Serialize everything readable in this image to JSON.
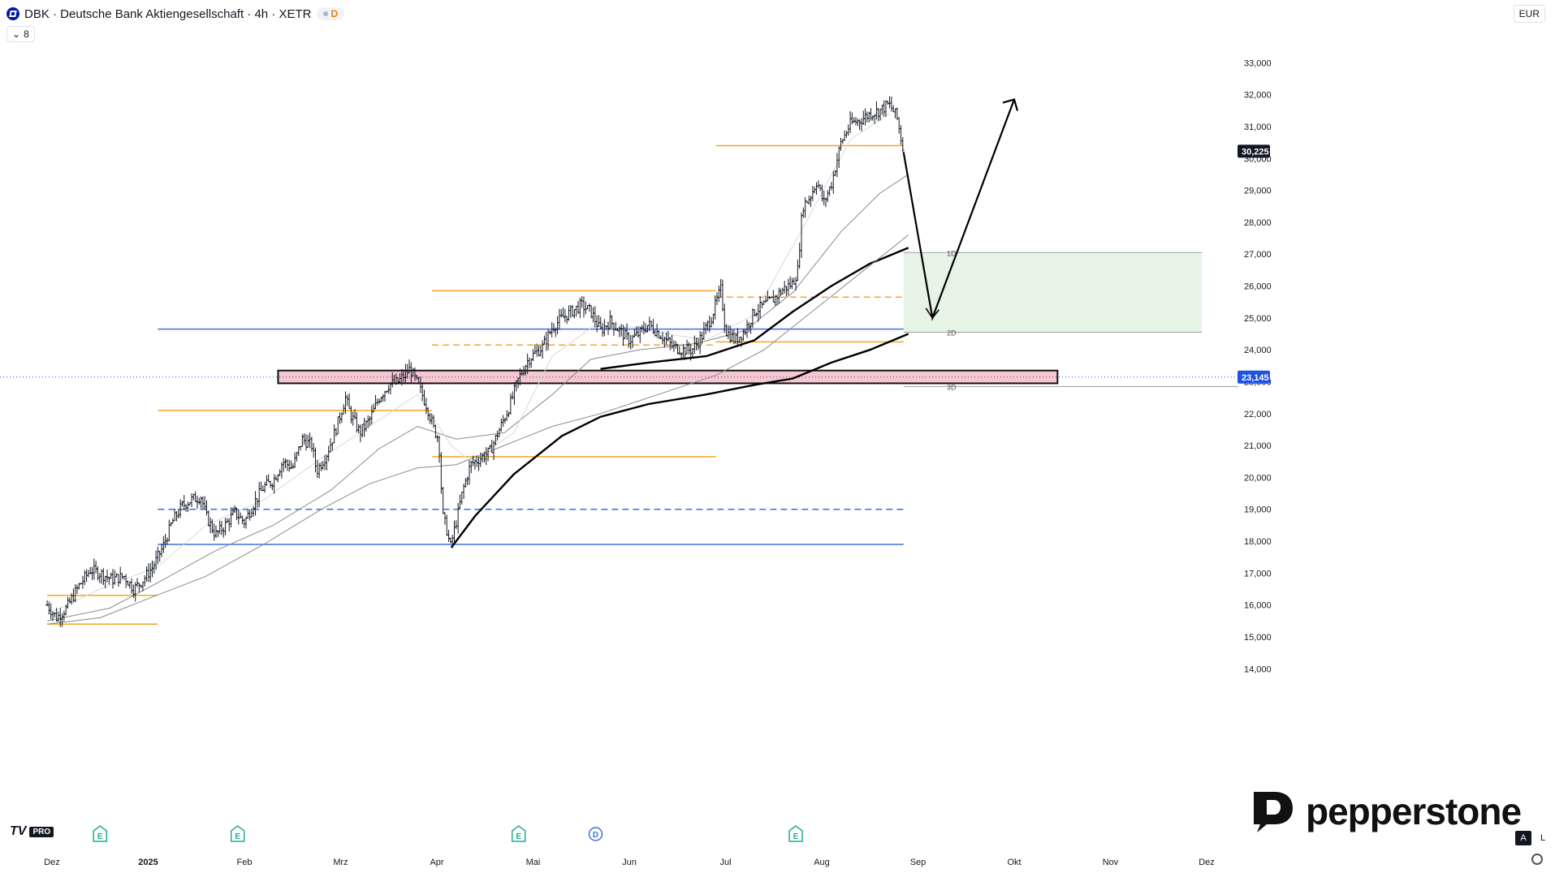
{
  "header": {
    "title": "DBK · Deutsche Bank Aktiengesellschaft · 4h · XETR",
    "badge": "D",
    "indicators_count": "8",
    "currency": "EUR"
  },
  "brand": {
    "name": "pepperstone"
  },
  "toolbar": {
    "a_label": "A",
    "l_label": "L"
  },
  "tv_logo": {
    "text": "TV",
    "pro": "PRO"
  },
  "colors": {
    "orange": "#f5a623",
    "blue": "#3d6fe0",
    "pink": "#f7c7d1",
    "green_zone": "#e6f4e5",
    "candle": "#131722"
  },
  "chart_data": {
    "type": "bar",
    "symbol": "DBK",
    "interval": "4h",
    "y_axis": {
      "ticks": [
        "14,000",
        "15,000",
        "16,000",
        "17,000",
        "18,000",
        "19,000",
        "20,000",
        "21,000",
        "22,000",
        "23,000",
        "24,000",
        "25,000",
        "26,000",
        "27,000",
        "28,000",
        "29,000",
        "30,000",
        "31,000",
        "32,000",
        "33,000"
      ],
      "values": [
        14,
        15,
        16,
        17,
        18,
        19,
        20,
        21,
        22,
        23,
        24,
        25,
        26,
        27,
        28,
        29,
        30,
        31,
        32,
        33
      ],
      "range": [
        13.6,
        33.95
      ]
    },
    "x_axis": {
      "ticks": [
        {
          "label": "Dez",
          "month_index": 0
        },
        {
          "label": "2025",
          "month_index": 1
        },
        {
          "label": "Feb",
          "month_index": 2
        },
        {
          "label": "Mrz",
          "month_index": 3
        },
        {
          "label": "Apr",
          "month_index": 4
        },
        {
          "label": "Mai",
          "month_index": 5
        },
        {
          "label": "Jun",
          "month_index": 6
        },
        {
          "label": "Jul",
          "month_index": 7
        },
        {
          "label": "Aug",
          "month_index": 8
        },
        {
          "label": "Sep",
          "month_index": 9
        },
        {
          "label": "Okt",
          "month_index": 10
        },
        {
          "label": "Nov",
          "month_index": 11
        },
        {
          "label": "Dez",
          "month_index": 12
        }
      ]
    },
    "price_path": [
      [
        -0.05,
        16.0
      ],
      [
        0.05,
        15.6
      ],
      [
        0.15,
        15.9
      ],
      [
        0.28,
        16.6
      ],
      [
        0.4,
        17.1
      ],
      [
        0.5,
        17.0
      ],
      [
        0.62,
        16.8
      ],
      [
        0.75,
        16.9
      ],
      [
        0.85,
        16.5
      ],
      [
        0.95,
        16.8
      ],
      [
        1.05,
        17.2
      ],
      [
        1.15,
        17.8
      ],
      [
        1.25,
        18.6
      ],
      [
        1.35,
        19.1
      ],
      [
        1.45,
        19.3
      ],
      [
        1.55,
        19.4
      ],
      [
        1.6,
        18.8
      ],
      [
        1.7,
        18.2
      ],
      [
        1.8,
        18.5
      ],
      [
        1.9,
        18.9
      ],
      [
        2.0,
        18.6
      ],
      [
        2.1,
        19.2
      ],
      [
        2.2,
        19.7
      ],
      [
        2.3,
        19.9
      ],
      [
        2.4,
        20.5
      ],
      [
        2.5,
        20.3
      ],
      [
        2.6,
        21.2
      ],
      [
        2.7,
        21.0
      ],
      [
        2.75,
        20.2
      ],
      [
        2.85,
        20.7
      ],
      [
        2.95,
        21.5
      ],
      [
        3.05,
        22.5
      ],
      [
        3.1,
        22.0
      ],
      [
        3.2,
        21.4
      ],
      [
        3.3,
        21.8
      ],
      [
        3.4,
        22.5
      ],
      [
        3.5,
        22.9
      ],
      [
        3.6,
        23.0
      ],
      [
        3.72,
        23.4
      ],
      [
        3.82,
        22.8
      ],
      [
        3.9,
        22.2
      ],
      [
        3.97,
        21.5
      ],
      [
        4.02,
        21.2
      ],
      [
        4.06,
        18.8
      ],
      [
        4.1,
        18.4
      ],
      [
        4.14,
        17.8
      ],
      [
        4.2,
        18.6
      ],
      [
        4.27,
        19.6
      ],
      [
        4.35,
        20.4
      ],
      [
        4.45,
        20.6
      ],
      [
        4.55,
        20.8
      ],
      [
        4.65,
        21.5
      ],
      [
        4.75,
        22.2
      ],
      [
        4.85,
        23.1
      ],
      [
        4.95,
        23.7
      ],
      [
        5.1,
        24.1
      ],
      [
        5.2,
        24.7
      ],
      [
        5.3,
        25.0
      ],
      [
        5.4,
        25.2
      ],
      [
        5.5,
        25.4
      ],
      [
        5.6,
        25.2
      ],
      [
        5.7,
        24.6
      ],
      [
        5.8,
        24.9
      ],
      [
        5.9,
        24.6
      ],
      [
        6.0,
        24.3
      ],
      [
        6.1,
        24.5
      ],
      [
        6.2,
        24.8
      ],
      [
        6.35,
        24.4
      ],
      [
        6.45,
        24.1
      ],
      [
        6.55,
        24.0
      ],
      [
        6.65,
        24.0
      ],
      [
        6.75,
        24.4
      ],
      [
        6.85,
        25.0
      ],
      [
        6.95,
        25.9
      ],
      [
        7.0,
        24.6
      ],
      [
        7.1,
        24.3
      ],
      [
        7.2,
        24.6
      ],
      [
        7.3,
        25.2
      ],
      [
        7.4,
        25.4
      ],
      [
        7.5,
        25.6
      ],
      [
        7.6,
        25.9
      ],
      [
        7.7,
        26.1
      ],
      [
        7.75,
        26.5
      ],
      [
        7.8,
        28.5
      ],
      [
        7.88,
        28.8
      ],
      [
        7.95,
        29.3
      ],
      [
        8.02,
        28.6
      ],
      [
        8.1,
        29.2
      ],
      [
        8.2,
        30.5
      ],
      [
        8.3,
        31.1
      ],
      [
        8.4,
        31.2
      ],
      [
        8.5,
        31.4
      ],
      [
        8.6,
        31.5
      ],
      [
        8.7,
        31.7
      ],
      [
        8.78,
        31.3
      ],
      [
        8.85,
        30.2
      ]
    ],
    "moving_averages": [
      {
        "style": "thick",
        "points": [
          [
            4.15,
            17.8
          ],
          [
            4.4,
            18.8
          ],
          [
            4.8,
            20.1
          ],
          [
            5.3,
            21.3
          ],
          [
            5.7,
            21.9
          ],
          [
            6.2,
            22.3
          ],
          [
            6.8,
            22.6
          ],
          [
            7.3,
            22.9
          ],
          [
            7.7,
            23.1
          ],
          [
            8.1,
            23.6
          ],
          [
            8.5,
            24.0
          ],
          [
            8.9,
            24.5
          ]
        ]
      },
      {
        "style": "thick",
        "points": [
          [
            5.7,
            23.4
          ],
          [
            6.2,
            23.6
          ],
          [
            6.8,
            23.8
          ],
          [
            7.3,
            24.3
          ],
          [
            7.7,
            25.2
          ],
          [
            8.1,
            26.0
          ],
          [
            8.5,
            26.7
          ],
          [
            8.9,
            27.2
          ]
        ]
      },
      {
        "style": "thin",
        "points": [
          [
            -0.05,
            15.4
          ],
          [
            0.5,
            15.6
          ],
          [
            1.0,
            16.2
          ],
          [
            1.6,
            16.9
          ],
          [
            2.2,
            17.9
          ],
          [
            2.8,
            19.0
          ],
          [
            3.3,
            19.8
          ],
          [
            3.8,
            20.3
          ],
          [
            4.2,
            20.4
          ],
          [
            4.7,
            21.0
          ],
          [
            5.2,
            21.6
          ],
          [
            5.7,
            22.0
          ],
          [
            6.3,
            22.6
          ],
          [
            6.9,
            23.2
          ],
          [
            7.4,
            24.0
          ],
          [
            7.9,
            25.2
          ],
          [
            8.4,
            26.4
          ],
          [
            8.9,
            27.6
          ]
        ]
      },
      {
        "style": "thin",
        "points": [
          [
            -0.05,
            15.5
          ],
          [
            0.6,
            15.9
          ],
          [
            1.1,
            16.7
          ],
          [
            1.7,
            17.7
          ],
          [
            2.3,
            18.5
          ],
          [
            2.9,
            19.6
          ],
          [
            3.4,
            20.9
          ],
          [
            3.8,
            21.6
          ],
          [
            4.2,
            21.2
          ],
          [
            4.7,
            21.4
          ],
          [
            5.2,
            22.6
          ],
          [
            5.6,
            23.7
          ],
          [
            6.1,
            24.0
          ],
          [
            6.7,
            24.2
          ],
          [
            7.2,
            24.6
          ],
          [
            7.7,
            25.8
          ],
          [
            8.2,
            27.7
          ],
          [
            8.6,
            28.9
          ],
          [
            8.9,
            29.5
          ]
        ]
      },
      {
        "style": "faint",
        "points": [
          [
            -0.05,
            15.7
          ],
          [
            0.5,
            16.5
          ],
          [
            1.1,
            17.2
          ],
          [
            1.6,
            18.5
          ],
          [
            2.2,
            19.3
          ],
          [
            2.8,
            20.6
          ],
          [
            3.3,
            21.6
          ],
          [
            3.8,
            22.6
          ],
          [
            4.15,
            21.0
          ],
          [
            4.35,
            20.5
          ],
          [
            4.8,
            21.4
          ],
          [
            5.2,
            23.8
          ],
          [
            5.7,
            24.9
          ],
          [
            6.2,
            24.6
          ],
          [
            6.8,
            24.3
          ],
          [
            7.3,
            25.1
          ],
          [
            7.8,
            27.8
          ],
          [
            8.3,
            30.6
          ],
          [
            8.7,
            31.4
          ]
        ]
      }
    ],
    "horizontal_levels": [
      {
        "price": 25.85,
        "from": 3.95,
        "to": 6.9,
        "color": "orange",
        "dash": false
      },
      {
        "price": 24.15,
        "from": 3.95,
        "to": 6.9,
        "color": "orange",
        "dash": true
      },
      {
        "price": 22.1,
        "from": 1.1,
        "to": 3.95,
        "color": "orange",
        "dash": false
      },
      {
        "price": 20.65,
        "from": 3.95,
        "to": 6.9,
        "color": "orange",
        "dash": false
      },
      {
        "price": 30.4,
        "from": 6.9,
        "to": 8.85,
        "color": "orange",
        "dash": false
      },
      {
        "price": 25.65,
        "from": 6.9,
        "to": 8.85,
        "color": "orange",
        "dash": true
      },
      {
        "price": 24.25,
        "from": 6.9,
        "to": 8.85,
        "color": "orange",
        "dash": false
      },
      {
        "price": 15.4,
        "from": -0.05,
        "to": 1.1,
        "color": "orange",
        "dash": false
      },
      {
        "price": 16.3,
        "from": -0.05,
        "to": 1.1,
        "color": "orange",
        "dash": false
      },
      {
        "price": 24.65,
        "from": 1.1,
        "to": 8.85,
        "color": "blue",
        "dash": false
      },
      {
        "price": 19.0,
        "from": 1.1,
        "to": 8.85,
        "color": "blue",
        "dash": true
      },
      {
        "price": 17.9,
        "from": 1.1,
        "to": 8.85,
        "color": "blue",
        "dash": false
      }
    ],
    "zones": [
      {
        "label": "",
        "type": "support_box",
        "from": 2.35,
        "to": 10.45,
        "low": 22.95,
        "high": 23.35,
        "color": "pink"
      },
      {
        "label": "target_zone",
        "from": 8.85,
        "to": 11.95,
        "low": 24.55,
        "high": 27.05,
        "color": "green"
      }
    ],
    "projection": {
      "points": [
        [
          8.85,
          30.2
        ],
        [
          9.15,
          25.0
        ],
        [
          10.0,
          31.85
        ]
      ]
    },
    "annotations": [
      {
        "text": "1D",
        "month_index": 9.3,
        "price": 27.05
      },
      {
        "text": "2D",
        "month_index": 9.3,
        "price": 24.55
      },
      {
        "text": "3D",
        "month_index": 9.3,
        "price": 22.85
      }
    ],
    "earnings_markers": [
      {
        "text": "E",
        "month_index": 0.5
      },
      {
        "text": "E",
        "month_index": 1.93
      },
      {
        "text": "E",
        "month_index": 4.85
      },
      {
        "text": "D",
        "month_index": 5.65
      },
      {
        "text": "E",
        "month_index": 7.73
      }
    ],
    "price_labels": [
      {
        "text": "30,225",
        "price": 30.225,
        "style": "dark"
      },
      {
        "text": "23,145",
        "price": 23.145,
        "style": "blue"
      }
    ],
    "current_price": 30.225,
    "dotted_level": 23.145
  }
}
